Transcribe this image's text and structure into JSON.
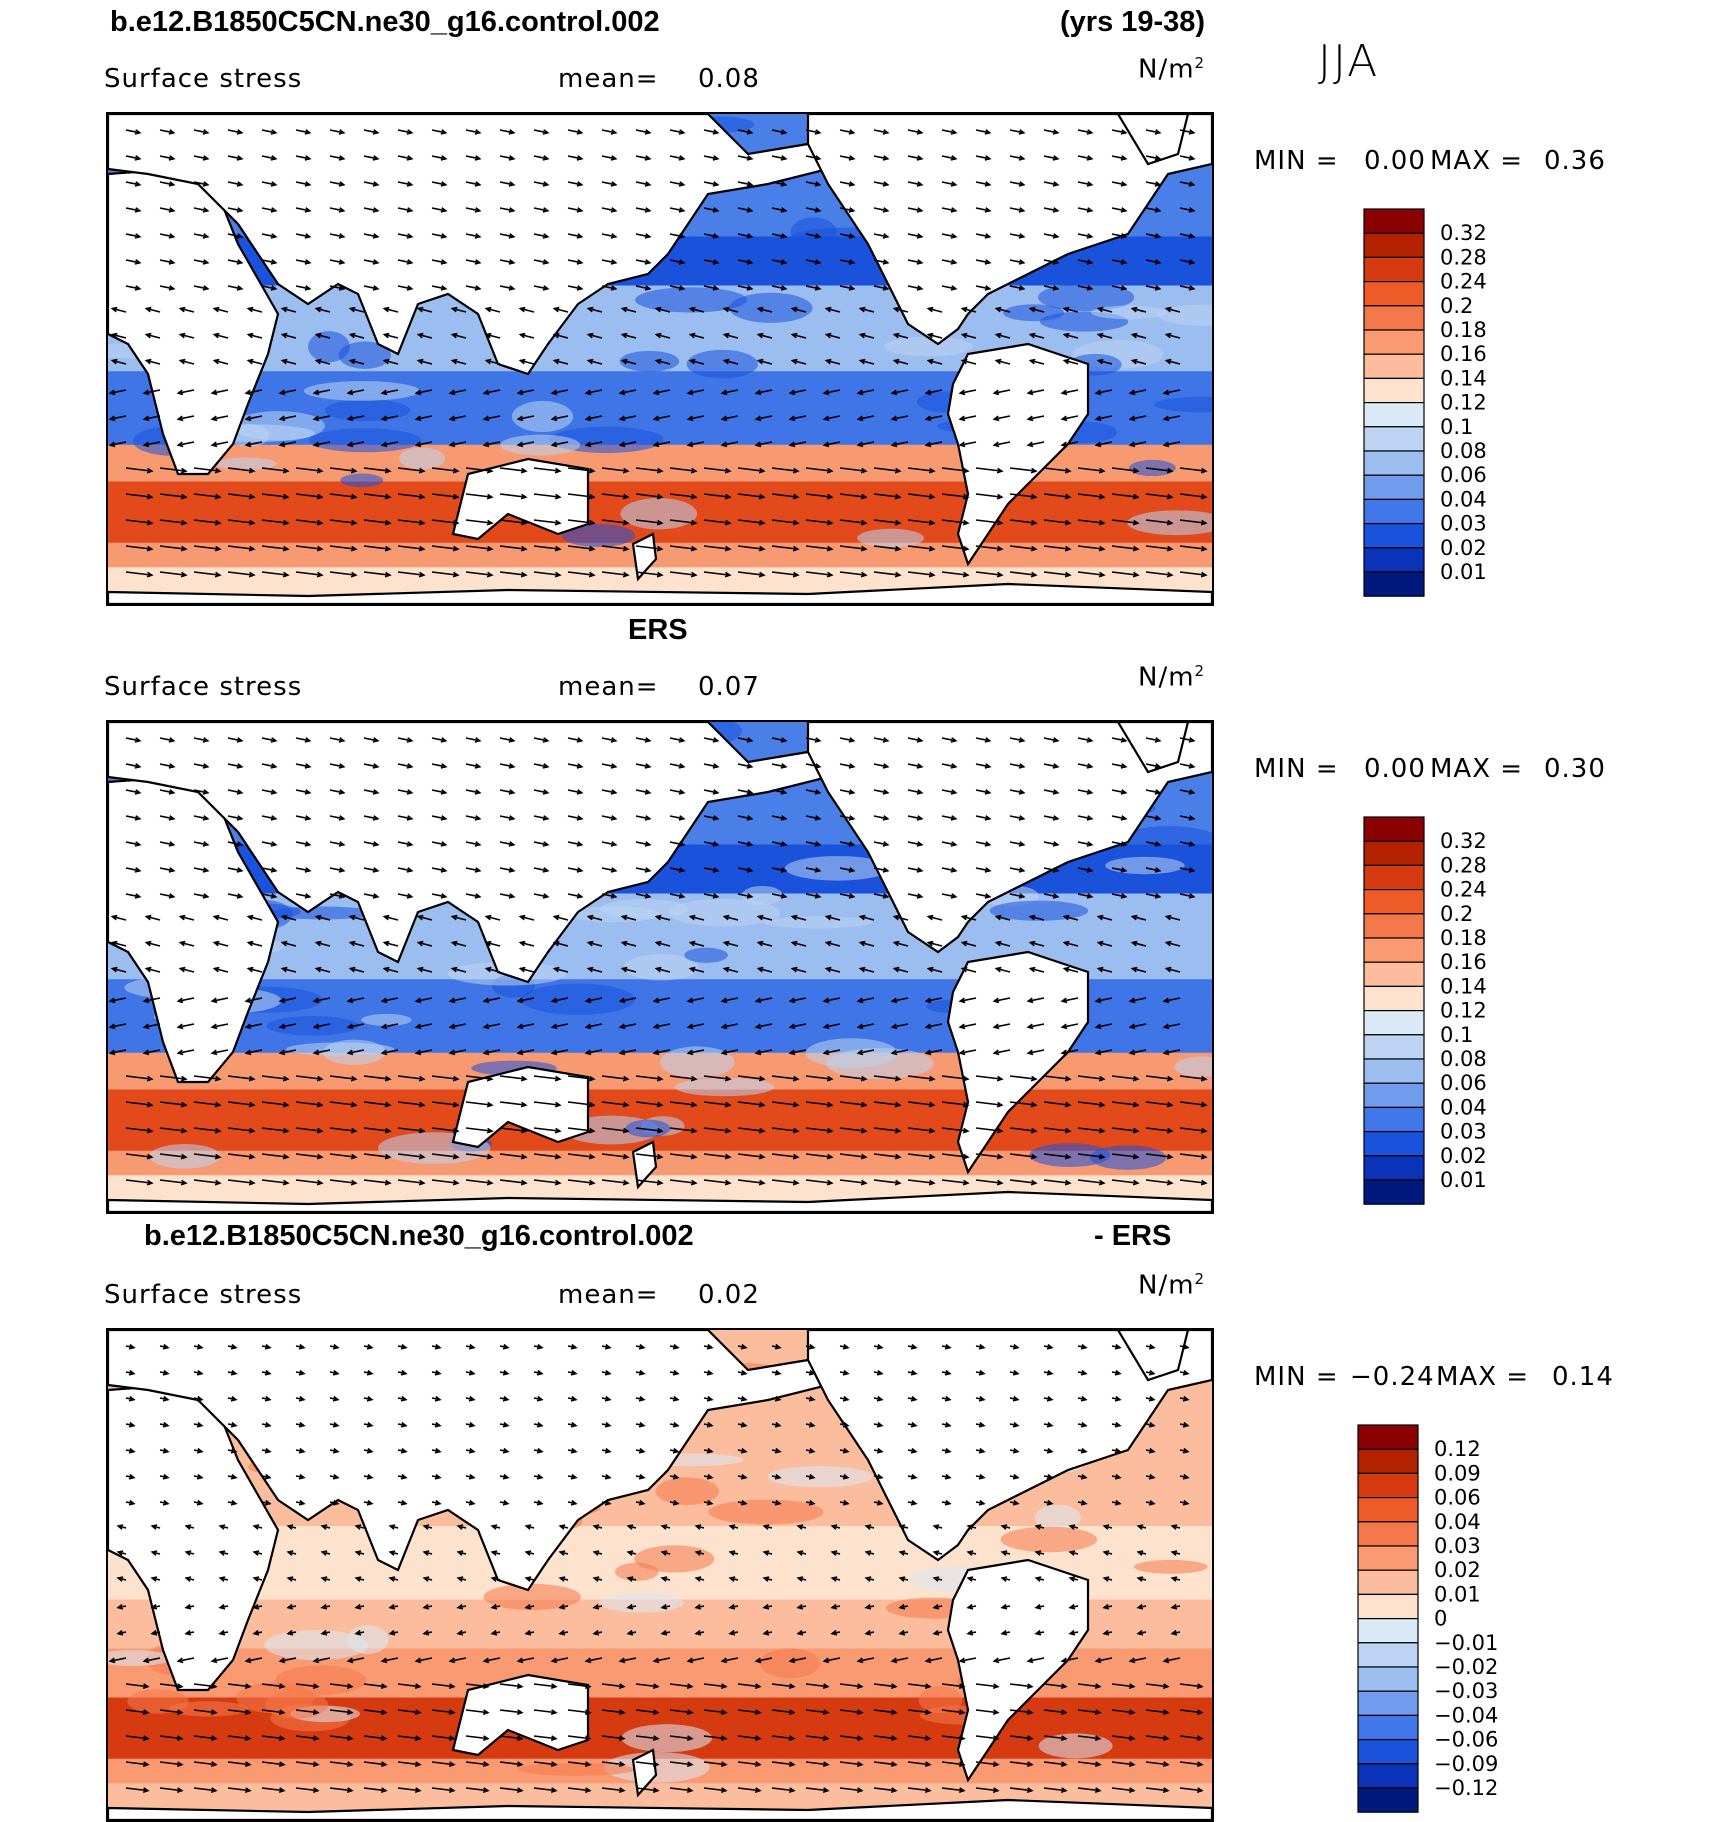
{
  "season": "JJA",
  "header": {
    "case_name": "b.e12.B1850C5CN.ne30_g16.control.002",
    "years": "(yrs 19-38)"
  },
  "panels": [
    {
      "title": "",
      "variable": "Surface stress",
      "mean_label": "mean=",
      "mean_value": "0.08",
      "units_base": "N/m",
      "units_exp": "2",
      "min_label": "MIN =",
      "min_value": "0.00",
      "max_label": "MAX =",
      "max_value": "0.36"
    },
    {
      "title": "ERS",
      "variable": "Surface stress",
      "mean_label": "mean=",
      "mean_value": "0.07",
      "units_base": "N/m",
      "units_exp": "2",
      "min_label": "MIN =",
      "min_value": "0.00",
      "max_label": "MAX =",
      "max_value": "0.30"
    },
    {
      "title_left": "b.e12.B1850C5CN.ne30_g16.control.002",
      "title_right": "- ERS",
      "variable": "Surface stress",
      "mean_label": "mean=",
      "mean_value": "0.02",
      "units_base": "N/m",
      "units_exp": "2",
      "min_label": "MIN =",
      "min_value": "−0.24",
      "max_label": "MAX =",
      "max_value": "0.14"
    }
  ],
  "chart_data": [
    {
      "type": "heatmap",
      "title": "b.e12.B1850C5CN.ne30_g16.control.002",
      "subtitle": "Surface stress",
      "units": "N/m²",
      "mean": 0.08,
      "min": 0.0,
      "max": 0.36,
      "season": "JJA",
      "years": "yrs 19-38",
      "colorbar_levels": [
        "0.32",
        "0.28",
        "0.24",
        "0.2",
        "0.18",
        "0.16",
        "0.14",
        "0.12",
        "0.1",
        "0.08",
        "0.06",
        "0.04",
        "0.03",
        "0.02",
        "0.01"
      ],
      "colorbar_colors": [
        "#8b0000",
        "#b22200",
        "#d63a10",
        "#ee5a28",
        "#f5784a",
        "#f99a72",
        "#fbbd9d",
        "#fde2cd",
        "#dbe8f6",
        "#bcd3f3",
        "#9cbdf0",
        "#6f9cec",
        "#4176e8",
        "#1a52dc",
        "#0a33b8",
        "#00197f"
      ]
    },
    {
      "type": "heatmap",
      "title": "ERS",
      "subtitle": "Surface stress",
      "units": "N/m²",
      "mean": 0.07,
      "min": 0.0,
      "max": 0.3,
      "colorbar_levels": [
        "0.32",
        "0.28",
        "0.24",
        "0.2",
        "0.18",
        "0.16",
        "0.14",
        "0.12",
        "0.1",
        "0.08",
        "0.06",
        "0.04",
        "0.03",
        "0.02",
        "0.01"
      ],
      "colorbar_colors": [
        "#8b0000",
        "#b22200",
        "#d63a10",
        "#ee5a28",
        "#f5784a",
        "#f99a72",
        "#fbbd9d",
        "#fde2cd",
        "#dbe8f6",
        "#bcd3f3",
        "#9cbdf0",
        "#6f9cec",
        "#4176e8",
        "#1a52dc",
        "#0a33b8",
        "#00197f"
      ]
    },
    {
      "type": "heatmap",
      "title": "b.e12.B1850C5CN.ne30_g16.control.002 - ERS",
      "subtitle": "Surface stress",
      "units": "N/m²",
      "mean": 0.02,
      "min": -0.24,
      "max": 0.14,
      "colorbar_levels": [
        "0.12",
        "0.09",
        "0.06",
        "0.04",
        "0.03",
        "0.02",
        "0.01",
        "0",
        "−0.01",
        "−0.02",
        "−0.03",
        "−0.04",
        "−0.06",
        "−0.09",
        "−0.12"
      ],
      "colorbar_colors": [
        "#8b0000",
        "#b22200",
        "#d63a10",
        "#ee5a28",
        "#f5784a",
        "#f99a72",
        "#fbbd9d",
        "#fde2cd",
        "#dbe8f6",
        "#bcd3f3",
        "#9cbdf0",
        "#6f9cec",
        "#4176e8",
        "#1a52dc",
        "#0a33b8",
        "#00197f"
      ]
    }
  ]
}
